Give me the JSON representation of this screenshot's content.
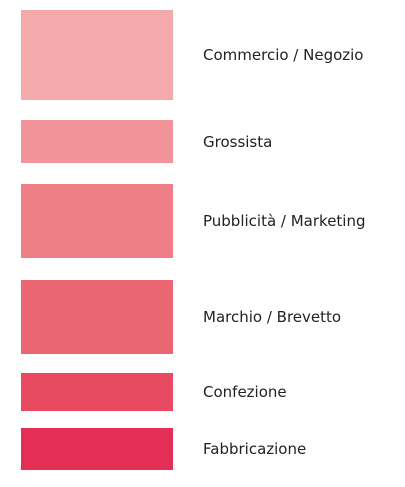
{
  "items": [
    {
      "label": "Commercio / Negozio",
      "color": "#f4a9aa"
    },
    {
      "label": "Grossista",
      "color": "#f19398"
    },
    {
      "label": "Pubblicità / Marketing",
      "color": "#ef7f86"
    },
    {
      "label": "Marchio / Brevetto",
      "color": "#eb6673"
    },
    {
      "label": "Confezione",
      "color": "#e84a62"
    },
    {
      "label": "Fabbricazione",
      "color": "#e52e55"
    }
  ]
}
